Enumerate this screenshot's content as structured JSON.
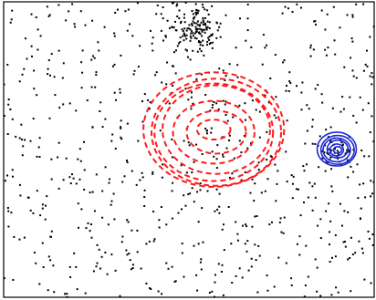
{
  "chart_data": {
    "type": "scatter",
    "title": "",
    "xlabel": "",
    "ylabel": "",
    "grid": false,
    "legend": "none",
    "xlim": [
      0,
      100
    ],
    "ylim": [
      0,
      80
    ],
    "colors": {
      "points": "#000000",
      "dashed_contours": "#ff1a1a",
      "solid_contours": "#1f2bd6",
      "frame": "#000000"
    },
    "scatter_count_background": 700,
    "clusters": [
      {
        "name": "",
        "center": [
          52,
          73
        ],
        "spread": [
          3.5,
          3.5
        ],
        "count": 130
      },
      {
        "name": "",
        "center": [
          90,
          40
        ],
        "spread": [
          2.5,
          2.0
        ],
        "count": 45
      }
    ],
    "contour_sets": [
      {
        "style": "dashed",
        "color": "#ff1a1a",
        "center": [
          57,
          45
        ],
        "rx": [
          19.0,
          17.5,
          16.0,
          14.5,
          11.0,
          8.0,
          4.5
        ],
        "ry": [
          15.5,
          14.5,
          13.2,
          12.0,
          8.5,
          5.8,
          2.7
        ]
      },
      {
        "style": "solid",
        "color": "#1f2bd6",
        "center": [
          90,
          40
        ],
        "rx": [
          5.3,
          4.5,
          3.7,
          2.8,
          1.8,
          1.1
        ],
        "ry": [
          4.6,
          3.9,
          3.2,
          2.4,
          1.6,
          0.9
        ]
      }
    ]
  }
}
